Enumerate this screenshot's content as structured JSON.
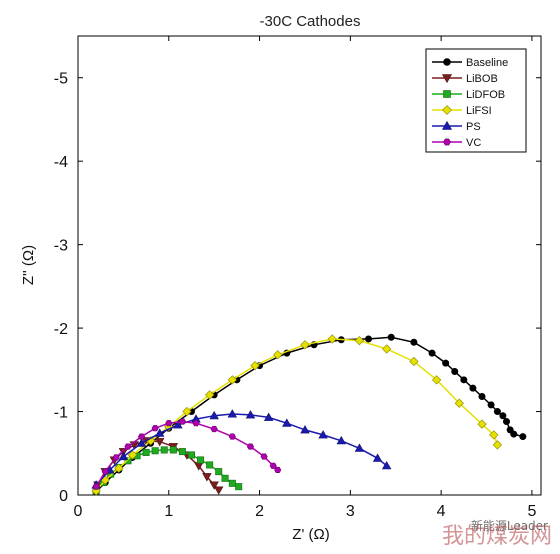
{
  "watermark": {
    "text1": "我的煤炭网",
    "text2": "新能源Leader"
  },
  "chart_data": {
    "type": "scatter",
    "title": "-30C Cathodes",
    "xlabel": "Z' (Ω)",
    "ylabel": "Z'' (Ω)",
    "xlim": [
      0,
      5.1
    ],
    "ylim": [
      0,
      -5.5
    ],
    "xticks": [
      0,
      1,
      2,
      3,
      4,
      5
    ],
    "yticks": [
      0,
      -1,
      -2,
      -3,
      -4,
      -5
    ],
    "legend_position": "top-right",
    "grid": false,
    "series": [
      {
        "name": "Baseline",
        "color": "#000000",
        "marker": "circle",
        "x": [
          0.2,
          0.3,
          0.45,
          0.6,
          0.8,
          1.0,
          1.25,
          1.5,
          1.75,
          2.0,
          2.3,
          2.6,
          2.9,
          3.2,
          3.45,
          3.7,
          3.9,
          4.05,
          4.15,
          4.25,
          4.35,
          4.45,
          4.55,
          4.62,
          4.68,
          4.72,
          4.76,
          4.8,
          4.9
        ],
        "y": [
          -0.04,
          -0.15,
          -0.3,
          -0.45,
          -0.62,
          -0.8,
          -1.0,
          -1.2,
          -1.38,
          -1.55,
          -1.7,
          -1.8,
          -1.86,
          -1.87,
          -1.89,
          -1.83,
          -1.7,
          -1.58,
          -1.48,
          -1.38,
          -1.28,
          -1.18,
          -1.08,
          -1.0,
          -0.95,
          -0.88,
          -0.78,
          -0.73,
          -0.7
        ]
      },
      {
        "name": "LiBOB",
        "color": "#7a1f1f",
        "marker": "triangle-down",
        "x": [
          0.22,
          0.3,
          0.4,
          0.5,
          0.62,
          0.75,
          0.9,
          1.05,
          1.2,
          1.33,
          1.42,
          1.5,
          1.55
        ],
        "y": [
          -0.12,
          -0.28,
          -0.42,
          -0.52,
          -0.6,
          -0.65,
          -0.64,
          -0.58,
          -0.48,
          -0.35,
          -0.22,
          -0.12,
          -0.06
        ]
      },
      {
        "name": "LiDFOB",
        "color": "#1faa1f",
        "marker": "square",
        "x": [
          0.2,
          0.28,
          0.36,
          0.45,
          0.55,
          0.65,
          0.75,
          0.85,
          0.95,
          1.05,
          1.15,
          1.25,
          1.35,
          1.45,
          1.55,
          1.62,
          1.7,
          1.77
        ],
        "y": [
          -0.05,
          -0.15,
          -0.25,
          -0.33,
          -0.41,
          -0.47,
          -0.51,
          -0.53,
          -0.54,
          -0.54,
          -0.52,
          -0.48,
          -0.42,
          -0.36,
          -0.28,
          -0.2,
          -0.14,
          -0.1
        ]
      },
      {
        "name": "LiFSI",
        "color": "#e6e000",
        "marker": "diamond",
        "x": [
          0.2,
          0.3,
          0.45,
          0.6,
          0.8,
          1.0,
          1.2,
          1.45,
          1.7,
          1.95,
          2.2,
          2.5,
          2.8,
          3.1,
          3.4,
          3.7,
          3.95,
          4.2,
          4.45,
          4.58,
          4.62
        ],
        "y": [
          -0.05,
          -0.18,
          -0.32,
          -0.48,
          -0.65,
          -0.82,
          -1.0,
          -1.2,
          -1.38,
          -1.55,
          -1.68,
          -1.8,
          -1.87,
          -1.85,
          -1.75,
          -1.6,
          -1.38,
          -1.1,
          -0.85,
          -0.72,
          -0.6
        ]
      },
      {
        "name": "PS",
        "color": "#1a1ab0",
        "marker": "triangle-up",
        "x": [
          0.2,
          0.35,
          0.5,
          0.7,
          0.9,
          1.1,
          1.3,
          1.5,
          1.7,
          1.9,
          2.1,
          2.3,
          2.5,
          2.7,
          2.9,
          3.1,
          3.3,
          3.4
        ],
        "y": [
          -0.12,
          -0.3,
          -0.46,
          -0.62,
          -0.74,
          -0.84,
          -0.91,
          -0.95,
          -0.97,
          -0.96,
          -0.93,
          -0.86,
          -0.78,
          -0.72,
          -0.65,
          -0.56,
          -0.44,
          -0.35
        ]
      },
      {
        "name": "VC",
        "color": "#b000b0",
        "marker": "hexagon",
        "x": [
          0.2,
          0.3,
          0.42,
          0.55,
          0.7,
          0.85,
          1.0,
          1.15,
          1.3,
          1.5,
          1.7,
          1.9,
          2.05,
          2.15,
          2.2
        ],
        "y": [
          -0.1,
          -0.28,
          -0.45,
          -0.58,
          -0.7,
          -0.8,
          -0.86,
          -0.88,
          -0.86,
          -0.79,
          -0.7,
          -0.58,
          -0.46,
          -0.35,
          -0.3
        ]
      }
    ]
  }
}
